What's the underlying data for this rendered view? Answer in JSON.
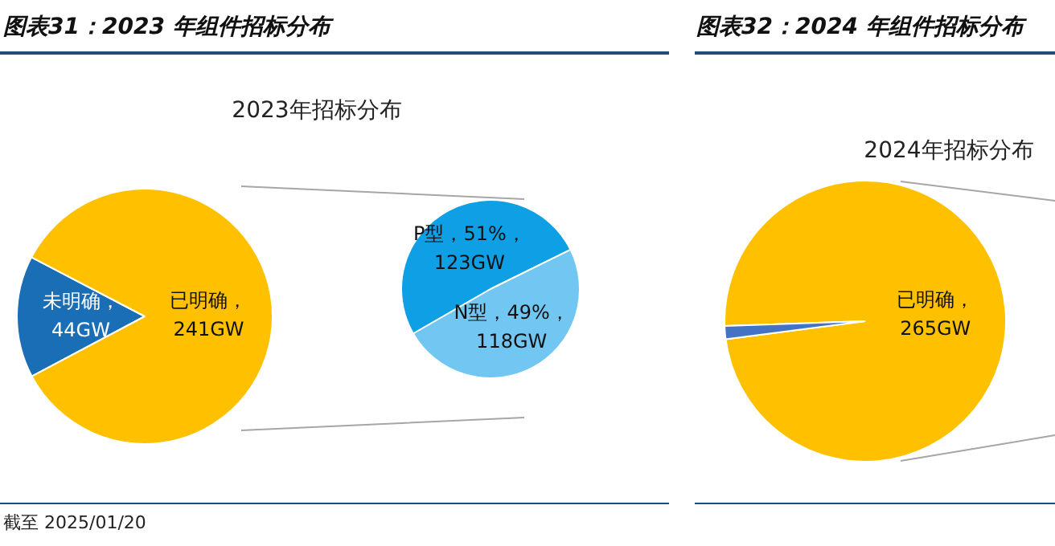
{
  "chart_data": [
    {
      "type": "pie",
      "title": "图表31：2023 年组件招标分布",
      "subtitle": "2023年招标分布",
      "categories": [
        "未明确",
        "已明确"
      ],
      "values": [
        44,
        241
      ],
      "colors": [
        "#1a6eb5",
        "#ffc000"
      ],
      "value_labels": [
        "，44GW",
        "，241GW"
      ],
      "annotations": [
        "截至 2025/01/20"
      ]
    },
    {
      "type": "pie",
      "categories": [
        "P型",
        "N型"
      ],
      "values": [
        123,
        118
      ],
      "colors": [
        "#0f9fe4",
        "#72c6f2"
      ],
      "value_labels": [
        "，51%，123GW",
        "，49%，118GW"
      ]
    },
    {
      "type": "pie",
      "title": "图表32：2024 年组件招标分布",
      "subtitle": "2024年招标分布",
      "categories": [
        "已明确",
        null
      ],
      "values": [
        265,
        4
      ],
      "colors": [
        "#ffc000",
        "#4472c4"
      ],
      "value_labels": [
        "，265GW",
        null
      ]
    }
  ]
}
